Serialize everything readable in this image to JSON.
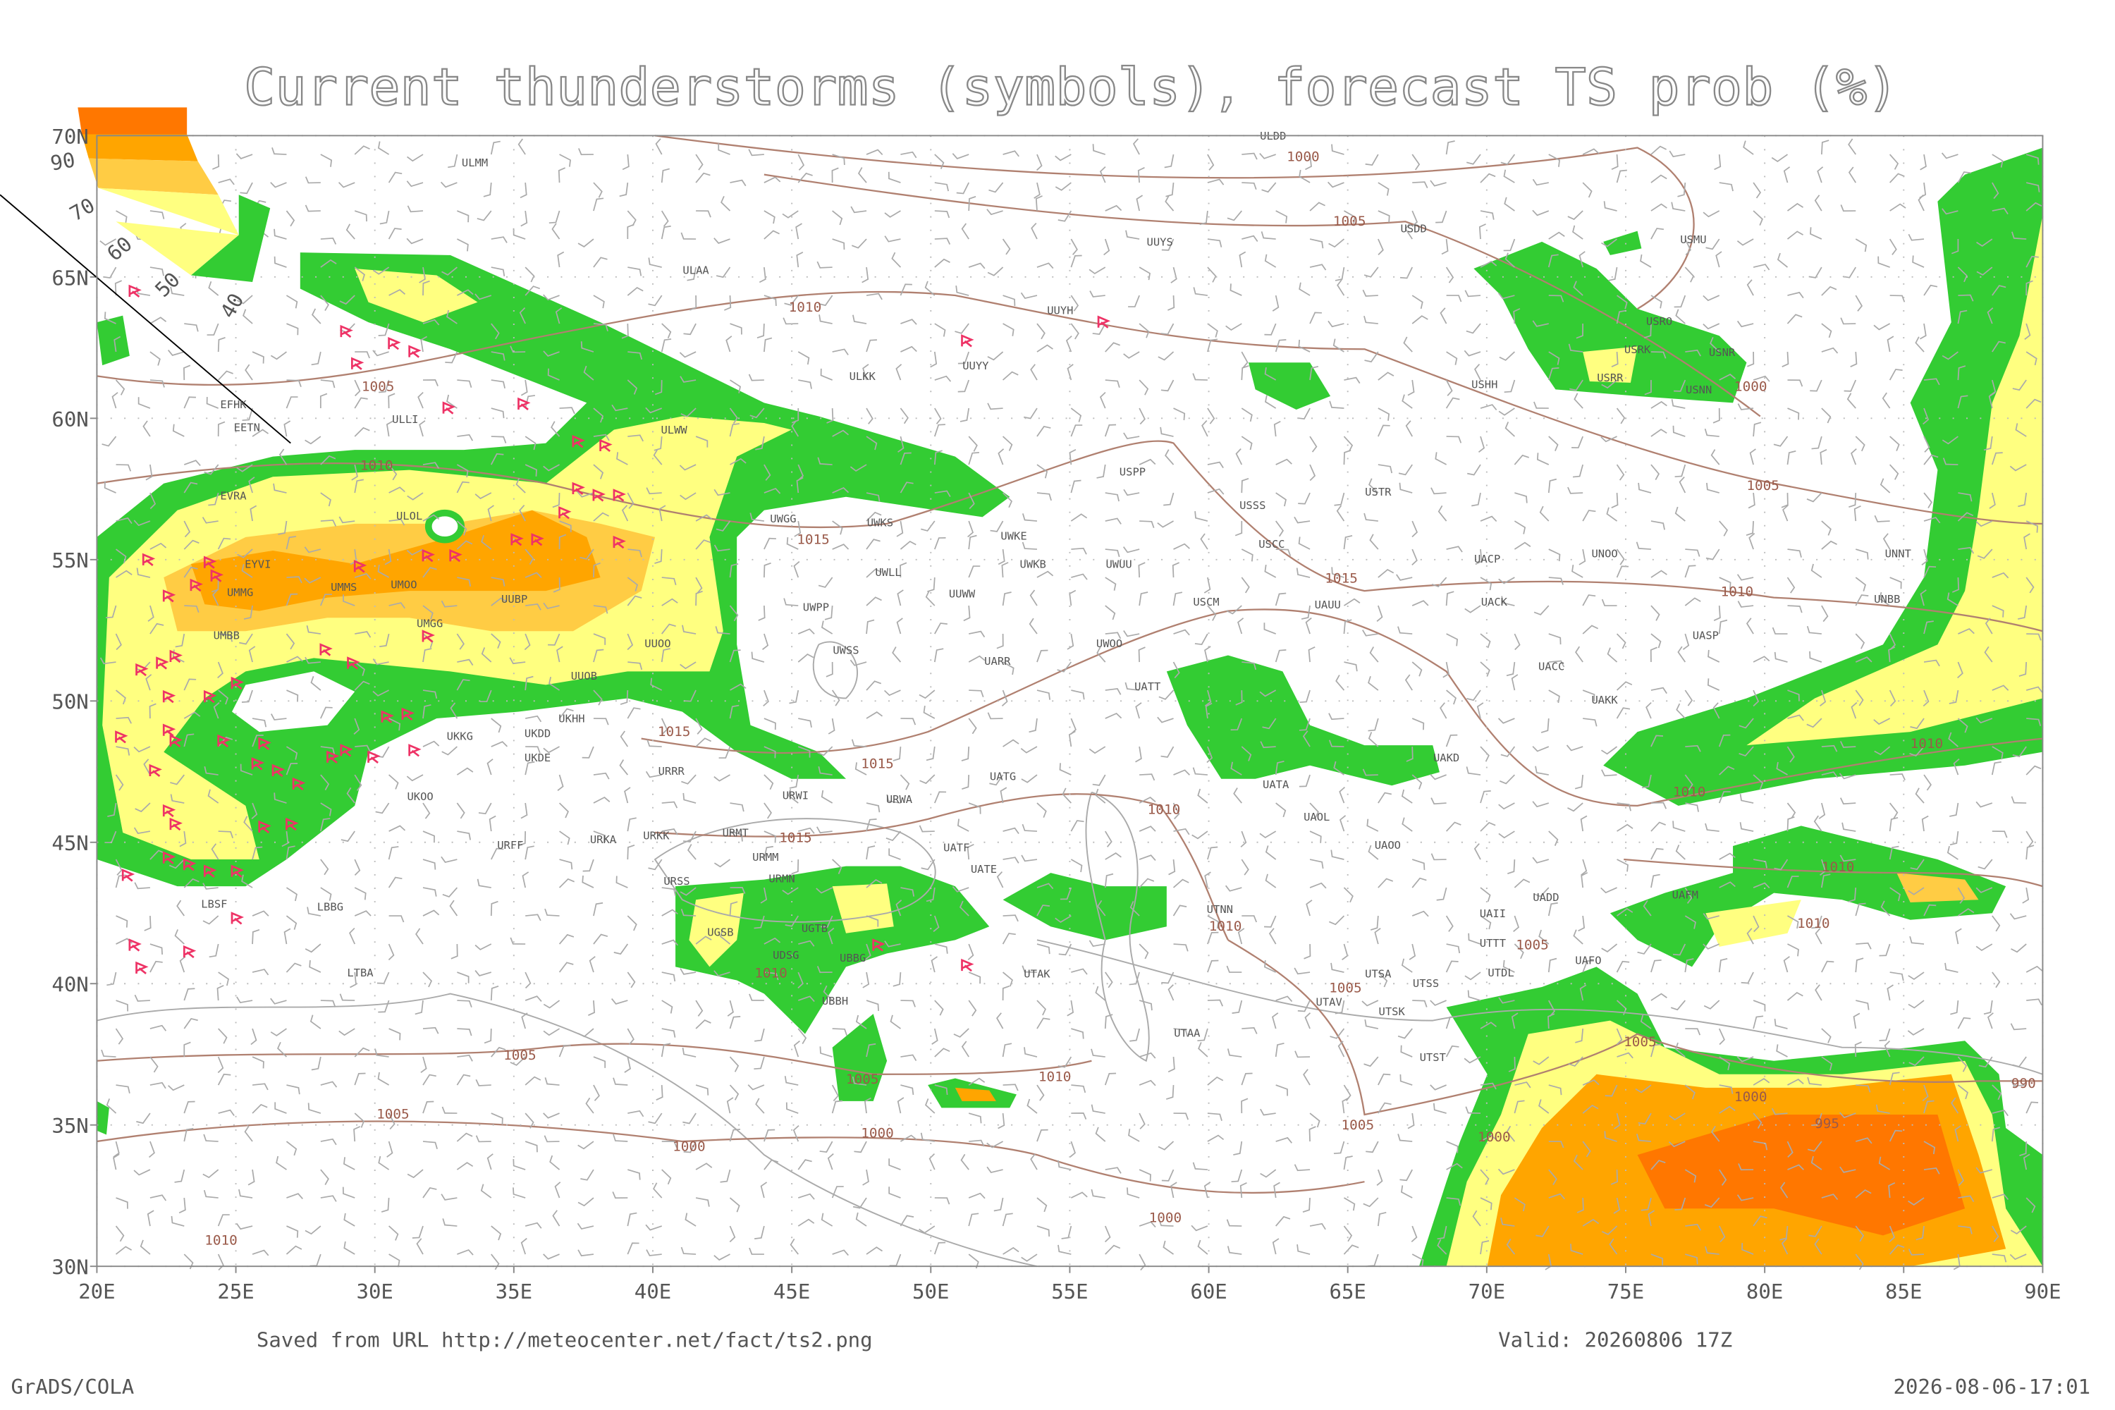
{
  "title": "Current thunderstorms (symbols), forecast TS prob (%)",
  "map": {
    "lat_ticks": [
      {
        "value": 70,
        "label": "70N"
      },
      {
        "value": 65,
        "label": "65N"
      },
      {
        "value": 60,
        "label": "60N"
      },
      {
        "value": 55,
        "label": "55N"
      },
      {
        "value": 50,
        "label": "50N"
      },
      {
        "value": 45,
        "label": "45N"
      },
      {
        "value": 40,
        "label": "40N"
      },
      {
        "value": 35,
        "label": "35N"
      },
      {
        "value": 30,
        "label": "30N"
      }
    ],
    "lon_ticks": [
      {
        "value": 20,
        "label": "20E"
      },
      {
        "value": 25,
        "label": "25E"
      },
      {
        "value": 30,
        "label": "30E"
      },
      {
        "value": 35,
        "label": "35E"
      },
      {
        "value": 40,
        "label": "40E"
      },
      {
        "value": 45,
        "label": "45E"
      },
      {
        "value": 50,
        "label": "50E"
      },
      {
        "value": 55,
        "label": "55E"
      },
      {
        "value": 60,
        "label": "60E"
      },
      {
        "value": 65,
        "label": "65E"
      },
      {
        "value": 70,
        "label": "70E"
      },
      {
        "value": 75,
        "label": "75E"
      },
      {
        "value": 80,
        "label": "80E"
      },
      {
        "value": 85,
        "label": "85E"
      },
      {
        "value": 90,
        "label": "90E"
      }
    ]
  },
  "legend": {
    "labels": [
      "90",
      "70",
      "60",
      "50",
      "40"
    ]
  },
  "stations": [
    "ULDD",
    "ULMM",
    "USDD",
    "UUYS",
    "USMU",
    "ULAA",
    "UUYH",
    "USRO",
    "USRK",
    "USNR",
    "UUYY",
    "ULKK",
    "USHH",
    "USRR",
    "USNN",
    "EFHK",
    "EETN",
    "ULLI",
    "ULWW",
    "USPP",
    "EVRA",
    "USSS",
    "USTR",
    "ULOL",
    "UWGG",
    "UWKS",
    "UWKE",
    "USCC",
    "EYVI",
    "UWKB",
    "UWUU",
    "UACP",
    "UNOO",
    "UNNT",
    "UWLL",
    "UMMS",
    "UMOO",
    "UUWW",
    "USCM",
    "UAUU",
    "UACK",
    "UNBB",
    "UMMG",
    "UUBP",
    "UWPP",
    "UMBB",
    "UMGG",
    "UUOO",
    "UWOO",
    "UASP",
    "UWSS",
    "UARR",
    "UACC",
    "UUOB",
    "UATT",
    "UAKK",
    "UKHH",
    "UKKG",
    "UKDD",
    "UKDE",
    "UAKD",
    "URRR",
    "UATG",
    "UKOO",
    "URWI",
    "URWA",
    "UATA",
    "UAOL",
    "URMT",
    "UAOO",
    "URFF",
    "URKA",
    "URKK",
    "UATF",
    "URMM",
    "UATE",
    "URMN",
    "URSS",
    "UADD",
    "UAFM",
    "LBSF",
    "LBBG",
    "UTNN",
    "UGSB",
    "UGTB",
    "UAII",
    "UTTT",
    "UDSG",
    "UBBG",
    "UAFO",
    "UTDL",
    "LTBA",
    "UTAK",
    "UTSA",
    "UTSS",
    "UTAV",
    "UBBH",
    "UTSK",
    "UTAA",
    "UTST"
  ],
  "isobars": [
    "1000",
    "1005",
    "1010",
    "1005",
    "1010",
    "1015",
    "1015",
    "1000",
    "1005",
    "1010",
    "1010",
    "1010",
    "1015",
    "1015",
    "1010",
    "1015",
    "1010",
    "1010",
    "1010",
    "1010",
    "1005",
    "1005",
    "1005",
    "1005",
    "1005",
    "1005",
    "1010",
    "1000",
    "1000",
    "1005",
    "1000",
    "995",
    "1000",
    "990",
    "1000",
    "1010"
  ],
  "footer": {
    "source": "Saved from URL http://meteocenter.net/fact/ts2.png",
    "valid": "Valid: 20260806 17Z",
    "software": "GrADS/COLA",
    "timestamp": "2026-08-06-17:01"
  }
}
